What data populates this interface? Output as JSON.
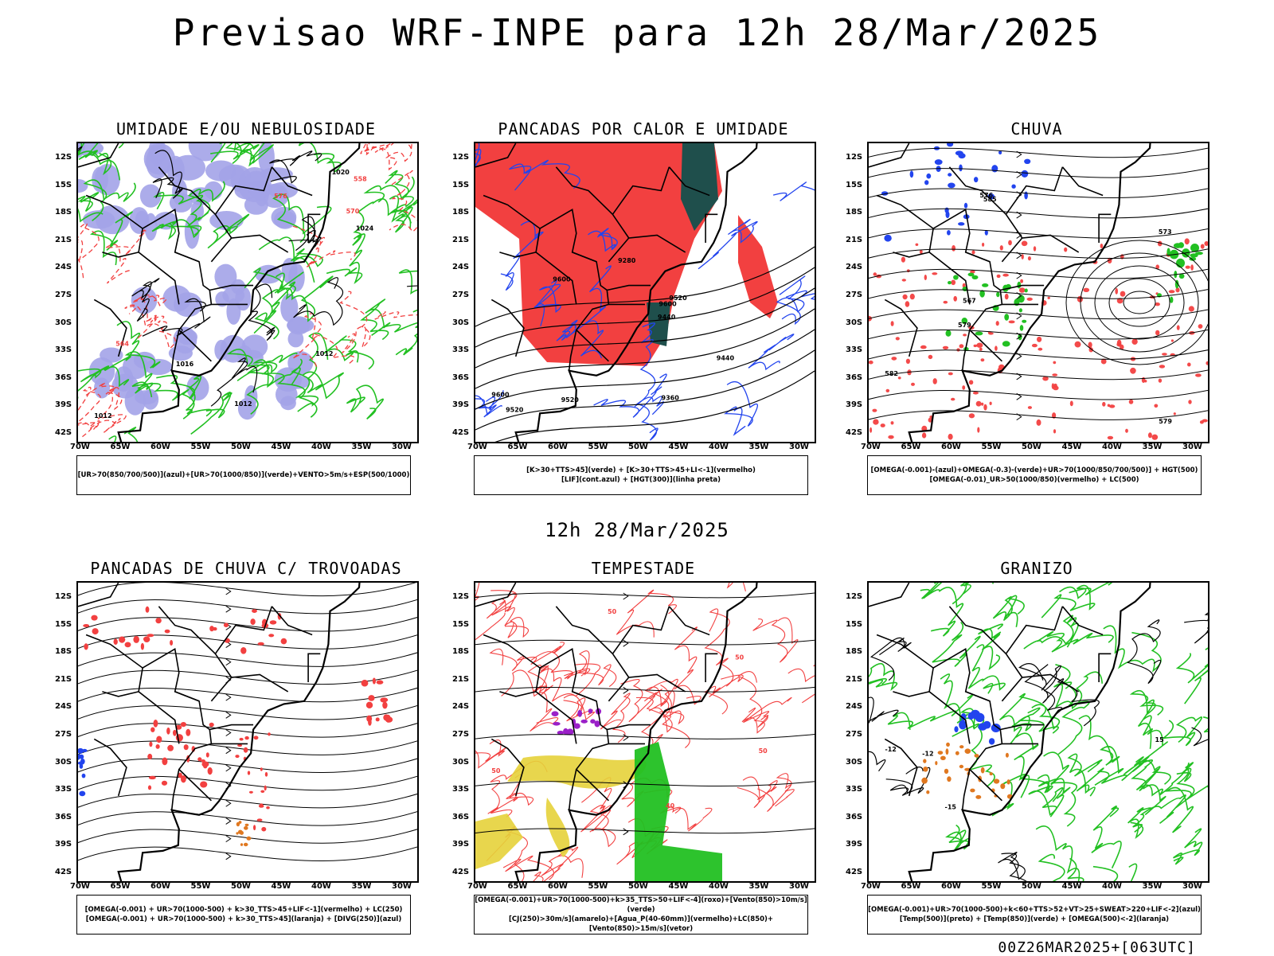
{
  "header": {
    "title": "Previsao WRF-INPE  para 12h 28/Mar/2025",
    "mid_title": "12h 28/Mar/2025",
    "footer": "00Z26MAR2025+[063UTC]"
  },
  "axes": {
    "lat_labels": [
      "12S",
      "15S",
      "18S",
      "21S",
      "24S",
      "27S",
      "30S",
      "33S",
      "36S",
      "39S",
      "42S"
    ],
    "lon_labels": [
      "70W",
      "65W",
      "60W",
      "55W",
      "50W",
      "45W",
      "40W",
      "35W",
      "30W"
    ]
  },
  "colors": {
    "blue_shade": "#a3a3e8",
    "green_contour": "#22c022",
    "red": "#f24040",
    "blue": "#2244ee",
    "teal": "#1f4f4c",
    "yellow": "#e6d23a",
    "purple": "#9a20c8",
    "orange": "#e07820"
  },
  "panels": [
    {
      "id": "umidade",
      "title": "UMIDADE E/OU NEBULOSIDADE",
      "legend": [
        "[UR>70(850/700/500)](azul)+[UR>70(1000/850)](verde)+VENTO>5m/s+ESP(500/1000)"
      ],
      "contour_labels": [
        "1012",
        "1012",
        "1012",
        "1016",
        "1020",
        "1024",
        "576",
        "570",
        "564",
        "558"
      ]
    },
    {
      "id": "pancadas-calor",
      "title": "PANCADAS POR CALOR E UMIDADE",
      "legend": [
        "[K>30+TTS>45](verde) + [K>30+TTS>45+LI<-1](vermelho)",
        "[LIF](cont.azul) + [HGT(300)](linha preta)"
      ],
      "contour_labels": [
        "9600",
        "9520",
        "9600",
        "9520",
        "9440",
        "9360",
        "9280",
        "9520",
        "9440",
        "9600"
      ]
    },
    {
      "id": "chuva",
      "title": "CHUVA",
      "legend": [
        "[OMEGA(-0.001)-(azul)+OMEGA(-0.3)-(verde)+UR>70(1000/850/700/500)] + HGT(500)",
        "[OMEGA(-0.01)_UR>50(1000/850)(vermelho) + LC(500)"
      ],
      "contour_labels": [
        "582",
        "585",
        "579",
        "573",
        "576",
        "567",
        "579"
      ]
    },
    {
      "id": "trovoadas",
      "title": "PANCADAS DE CHUVA C/ TROVOADAS",
      "legend": [
        "[OMEGA(-0.001) + UR>70(1000-500) + k>30_TTS>45+LIF<-1](vermelho) + LC(250)",
        "[OMEGA(-0.001) + UR>70(1000-500) + k>30_TTS>45](laranja) + [DIVG(250)](azul)"
      ],
      "contour_labels": []
    },
    {
      "id": "tempestade",
      "title": "TEMPESTADE",
      "legend": [
        "[OMEGA(-0.001)+UR>70(1000-500)+k>35_TTS>50+LIF<-4](roxo)+[Vento(850)>10m/s](verde)",
        "[CJ(250)>30m/s](amarelo)+[Agua_P(40-60mm)](vermelho)+LC(850)+[Vento(850)>15m/s](vetor)"
      ],
      "contour_labels": [
        "50",
        "50",
        "50",
        "40",
        "50"
      ]
    },
    {
      "id": "granizo",
      "title": "GRANIZO",
      "legend": [
        "[OMEGA(-0.001)+UR>70(1000-500)+k<60+TTS>52+VT>25+SWEAT>220+LIF<-2](azul)",
        "[Temp(500)](preto) + [Temp(850)](verde) + [OMEGA(500)<-2](laranja)"
      ],
      "contour_labels": [
        "-12",
        "-15",
        "-12",
        "15"
      ]
    }
  ]
}
